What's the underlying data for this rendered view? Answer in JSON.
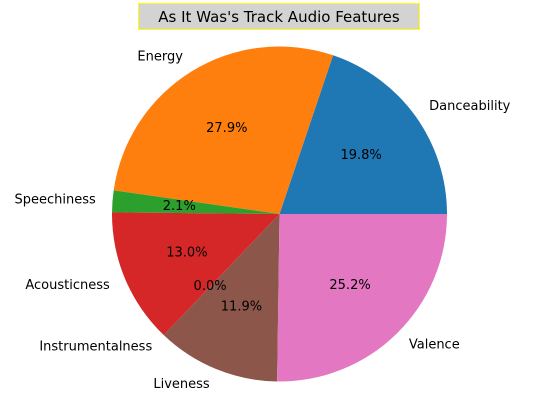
{
  "chart_data": {
    "type": "pie",
    "title": "As It Was's Track Audio Features",
    "categories": [
      "Danceability",
      "Energy",
      "Speechiness",
      "Acousticness",
      "Instrumentalness",
      "Liveness",
      "Valence"
    ],
    "values": [
      19.8,
      27.9,
      2.1,
      13.0,
      0.0,
      11.9,
      25.2
    ],
    "value_labels": [
      "19.8%",
      "27.9%",
      "2.1%",
      "13.0%",
      "0.0%",
      "11.9%",
      "25.2%"
    ],
    "colors": [
      "#1f77b4",
      "#ff7f0e",
      "#2ca02c",
      "#d62728",
      "#9467bd",
      "#8c564b",
      "#e377c2"
    ],
    "start_angle_deg": 0,
    "direction": "counterclockwise",
    "legend": "none",
    "title_box": {
      "background": "#d3d3d3",
      "border": "#ffff00"
    }
  }
}
